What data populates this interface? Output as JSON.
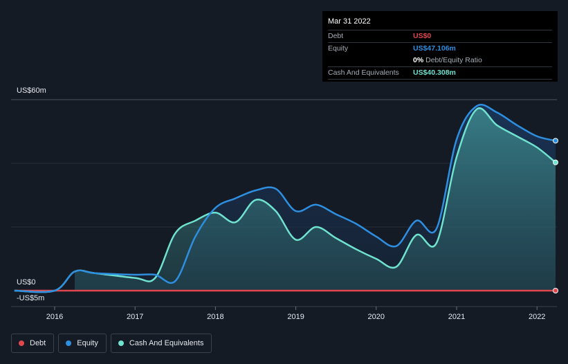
{
  "tooltip": {
    "date": "Mar 31 2022",
    "debt_label": "Debt",
    "debt_value": "US$0",
    "equity_label": "Equity",
    "equity_value": "US$47.106m",
    "ratio_value": "0%",
    "ratio_label": "Debt/Equity Ratio",
    "cash_label": "Cash And Equivalents",
    "cash_value": "US$40.308m"
  },
  "legend": [
    {
      "label": "Debt"
    },
    {
      "label": "Equity"
    },
    {
      "label": "Cash And Equivalents"
    }
  ],
  "colors": {
    "debt": "#e0464e",
    "equity": "#2e8fe0",
    "cash": "#6fe3cf"
  },
  "chart_data": {
    "type": "area",
    "y_axis_labels": [
      "US$60m",
      "US$0",
      "-US$5m"
    ],
    "ylim": [
      -5,
      60
    ],
    "x_ticks": [
      "2016",
      "2017",
      "2018",
      "2019",
      "2020",
      "2021",
      "2022"
    ],
    "series": [
      {
        "name": "Debt",
        "x": [
          2015.5,
          2022.25
        ],
        "values": [
          0,
          0
        ]
      },
      {
        "name": "Equity",
        "x": [
          2015.5,
          2016.0,
          2016.25,
          2016.5,
          2017.0,
          2017.25,
          2017.5,
          2017.75,
          2018.0,
          2018.25,
          2018.5,
          2018.75,
          2019.0,
          2019.25,
          2019.5,
          2019.75,
          2020.0,
          2020.25,
          2020.5,
          2020.75,
          2021.0,
          2021.25,
          2021.5,
          2021.75,
          2022.0,
          2022.25
        ],
        "values": [
          0,
          0,
          6,
          5.5,
          5,
          5,
          3,
          17,
          26,
          29,
          31.5,
          32,
          25,
          27,
          24,
          21,
          17,
          14,
          22,
          19.5,
          47.5,
          58,
          56,
          52,
          48.5,
          47.1
        ]
      },
      {
        "name": "Cash And Equivalents",
        "x": [
          2015.5,
          2016.0,
          2016.25,
          2016.5,
          2017.0,
          2017.25,
          2017.5,
          2017.75,
          2018.0,
          2018.25,
          2018.5,
          2018.75,
          2019.0,
          2019.25,
          2019.5,
          2019.75,
          2020.0,
          2020.25,
          2020.5,
          2020.75,
          2021.0,
          2021.25,
          2021.5,
          2021.75,
          2022.0,
          2022.25
        ],
        "values": [
          0,
          0,
          6,
          5.5,
          4,
          4,
          18,
          22,
          24.5,
          21.5,
          28.5,
          25,
          16,
          20,
          16.5,
          13,
          10,
          7.5,
          17.5,
          15,
          42,
          57,
          52,
          48.5,
          45,
          40.3
        ]
      }
    ]
  }
}
